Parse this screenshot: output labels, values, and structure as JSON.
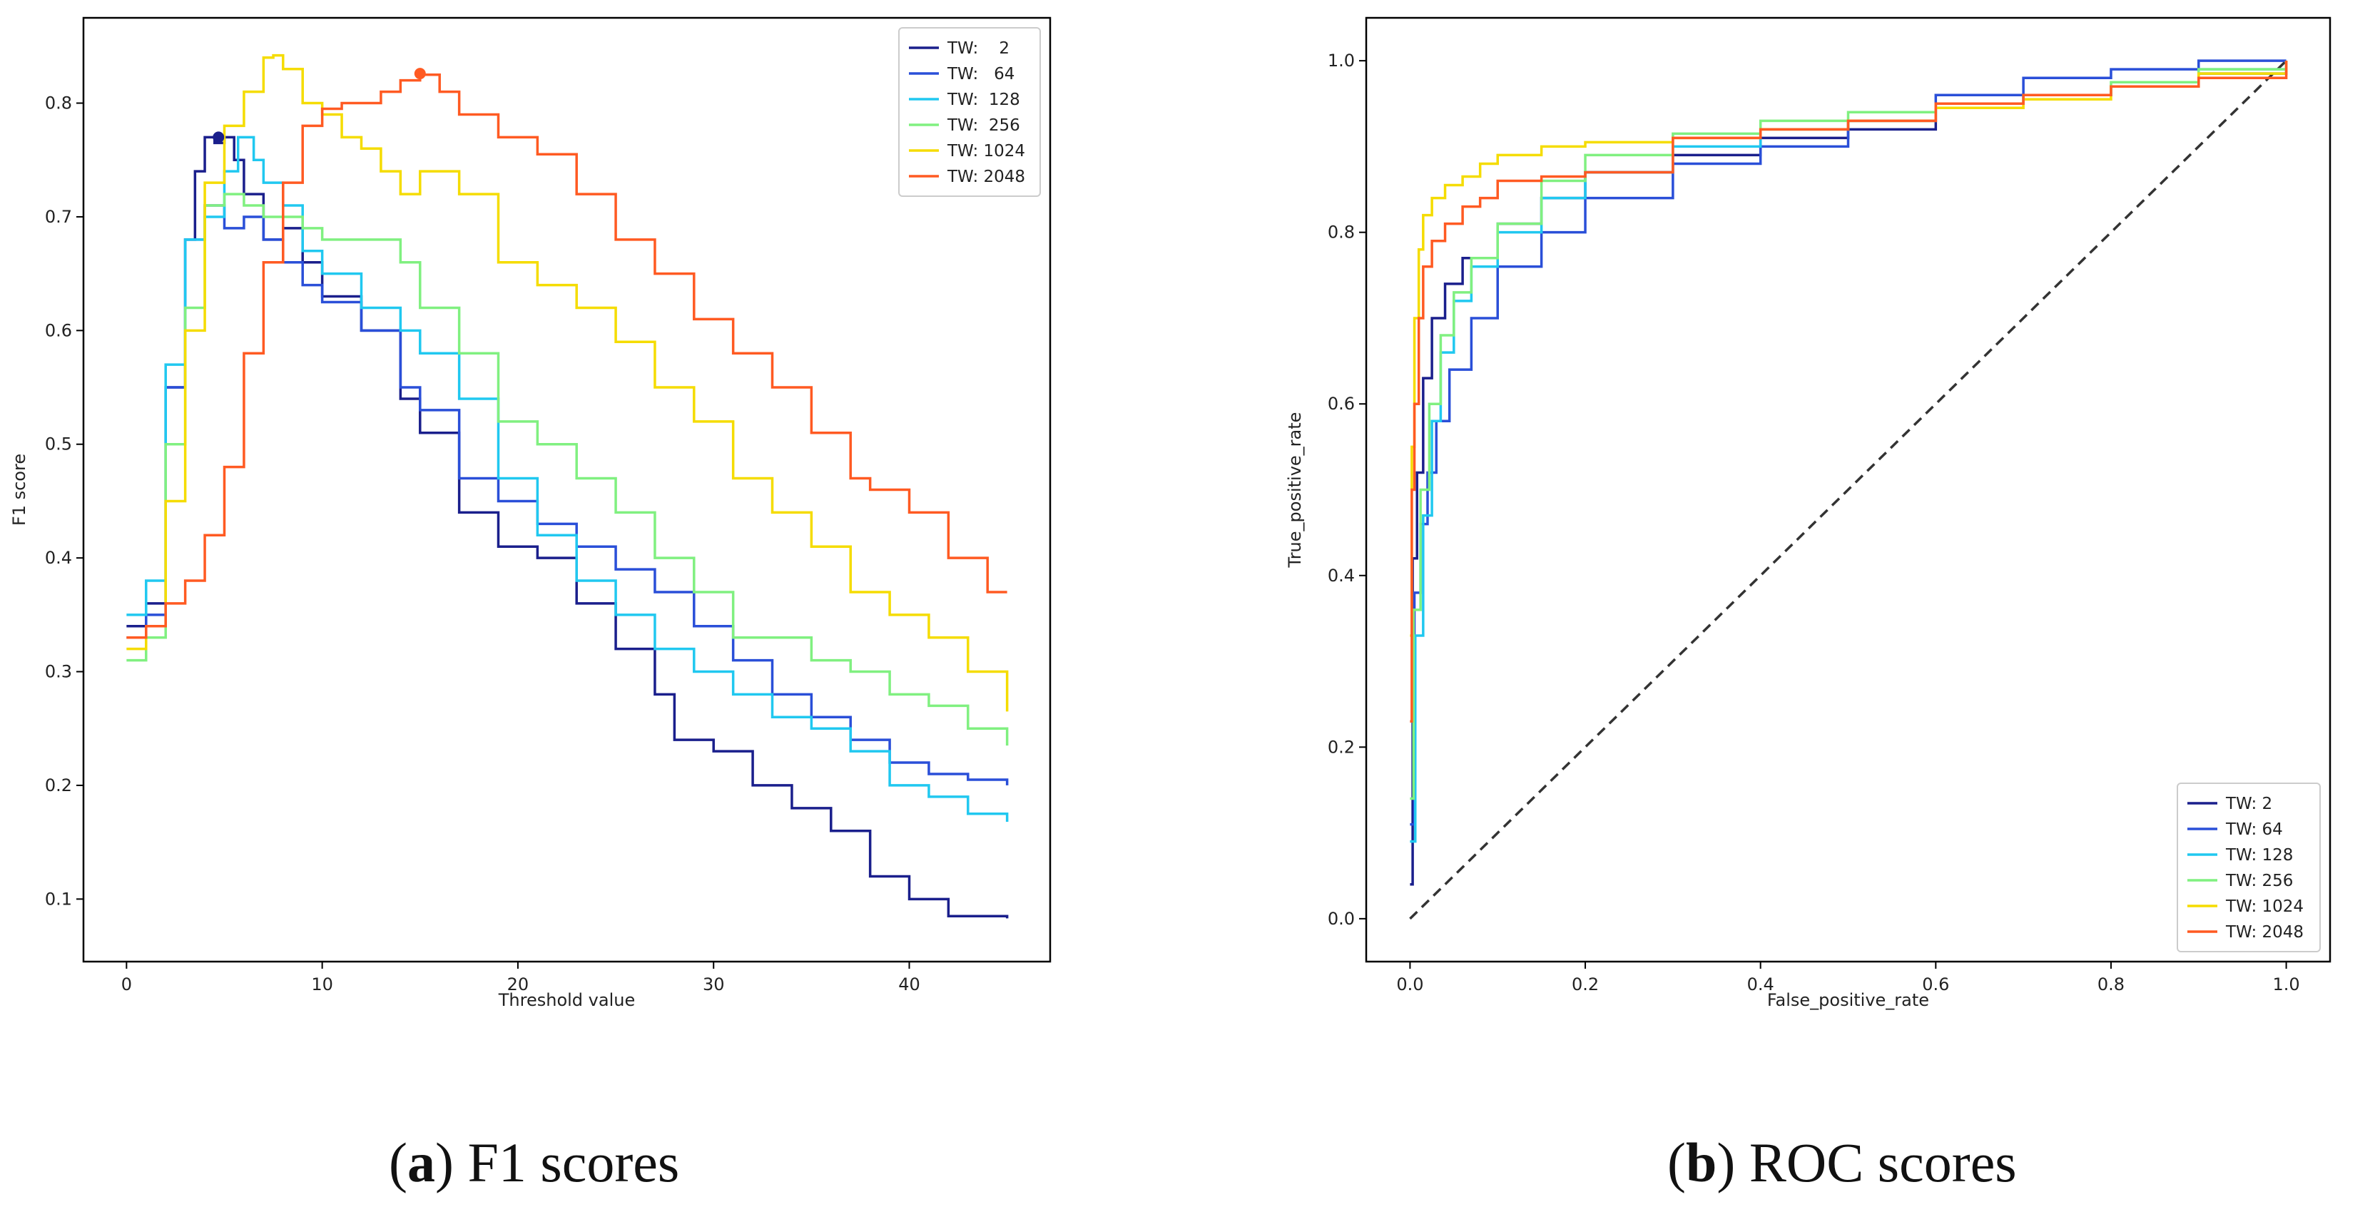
{
  "chart_data": [
    {
      "type": "line",
      "panel": "a",
      "caption_letter": "a",
      "caption_text": "F1 scores",
      "title": "",
      "xlabel": "Threshold value",
      "ylabel": "F1 score",
      "xlim": [
        -2.2,
        47.2
      ],
      "ylim": [
        0.045,
        0.875
      ],
      "xticks": [
        0,
        10,
        20,
        30,
        40
      ],
      "yticks": [
        0.1,
        0.2,
        0.3,
        0.4,
        0.5,
        0.6,
        0.7,
        0.8
      ],
      "grid": false,
      "legend_position": "top-right",
      "legend_labels": [
        "TW:    2",
        "TW:   64",
        "TW:  128",
        "TW:  256",
        "TW: 1024",
        "TW: 2048"
      ],
      "series": [
        {
          "name": "TW: 2",
          "color": "#1a1f8c",
          "step": true,
          "x": [
            0,
            1,
            2,
            3,
            3.5,
            4,
            4.5,
            5,
            5.5,
            6,
            7,
            8,
            9,
            10,
            12,
            14,
            15,
            17,
            19,
            21,
            23,
            25,
            27,
            28,
            30,
            32,
            34,
            36,
            38,
            40,
            42,
            45
          ],
          "y": [
            0.34,
            0.36,
            0.55,
            0.68,
            0.74,
            0.77,
            0.765,
            0.77,
            0.75,
            0.72,
            0.68,
            0.69,
            0.66,
            0.63,
            0.6,
            0.54,
            0.51,
            0.44,
            0.41,
            0.4,
            0.36,
            0.32,
            0.28,
            0.24,
            0.23,
            0.2,
            0.18,
            0.16,
            0.12,
            0.1,
            0.085,
            0.083
          ],
          "markers": [
            {
              "x": 4.7,
              "y": 0.77
            }
          ]
        },
        {
          "name": "TW: 64",
          "color": "#2a4fd8",
          "step": true,
          "x": [
            0,
            1,
            2,
            3,
            4,
            5,
            6,
            7,
            8,
            9,
            10,
            12,
            14,
            15,
            17,
            19,
            21,
            23,
            25,
            27,
            29,
            31,
            33,
            35,
            37,
            39,
            41,
            43,
            45
          ],
          "y": [
            0.33,
            0.35,
            0.55,
            0.68,
            0.71,
            0.69,
            0.7,
            0.68,
            0.66,
            0.64,
            0.625,
            0.6,
            0.55,
            0.53,
            0.47,
            0.45,
            0.43,
            0.41,
            0.39,
            0.37,
            0.34,
            0.31,
            0.28,
            0.26,
            0.24,
            0.22,
            0.21,
            0.205,
            0.2
          ]
        },
        {
          "name": "TW: 128",
          "color": "#20c8f0",
          "step": true,
          "x": [
            0,
            1,
            2,
            3,
            4,
            5,
            5.7,
            6.5,
            7,
            8,
            9,
            10,
            12,
            14,
            15,
            17,
            19,
            21,
            23,
            25,
            27,
            29,
            31,
            33,
            35,
            37,
            39,
            41,
            43,
            45
          ],
          "y": [
            0.35,
            0.38,
            0.57,
            0.68,
            0.7,
            0.74,
            0.77,
            0.75,
            0.73,
            0.71,
            0.67,
            0.65,
            0.62,
            0.6,
            0.58,
            0.54,
            0.47,
            0.42,
            0.38,
            0.35,
            0.32,
            0.3,
            0.28,
            0.26,
            0.25,
            0.23,
            0.2,
            0.19,
            0.175,
            0.168
          ]
        },
        {
          "name": "TW: 256",
          "color": "#80f080",
          "step": true,
          "x": [
            0,
            1,
            2,
            3,
            4,
            5,
            5.2,
            6,
            7,
            8,
            9,
            10,
            12,
            14,
            15,
            17,
            19,
            21,
            23,
            25,
            27,
            29,
            31,
            33,
            35,
            37,
            39,
            41,
            43,
            45
          ],
          "y": [
            0.31,
            0.33,
            0.5,
            0.62,
            0.71,
            0.72,
            0.72,
            0.71,
            0.7,
            0.7,
            0.69,
            0.68,
            0.68,
            0.66,
            0.62,
            0.58,
            0.52,
            0.5,
            0.47,
            0.44,
            0.4,
            0.37,
            0.33,
            0.33,
            0.31,
            0.3,
            0.28,
            0.27,
            0.25,
            0.235
          ]
        },
        {
          "name": "TW: 1024",
          "color": "#f5dc00",
          "step": true,
          "x": [
            0,
            1,
            2,
            3,
            4,
            5,
            6,
            7,
            7.5,
            8,
            9,
            10,
            11,
            12,
            13,
            14,
            15,
            17,
            19,
            21,
            23,
            25,
            27,
            29,
            31,
            33,
            35,
            37,
            39,
            41,
            43,
            45
          ],
          "y": [
            0.32,
            0.34,
            0.45,
            0.6,
            0.73,
            0.78,
            0.81,
            0.84,
            0.842,
            0.83,
            0.8,
            0.79,
            0.77,
            0.76,
            0.74,
            0.72,
            0.74,
            0.72,
            0.66,
            0.64,
            0.62,
            0.59,
            0.55,
            0.52,
            0.47,
            0.44,
            0.41,
            0.37,
            0.35,
            0.33,
            0.3,
            0.265
          ]
        },
        {
          "name": "TW: 2048",
          "color": "#ff5a22",
          "step": true,
          "x": [
            0,
            1,
            2,
            3,
            4,
            5,
            6,
            7,
            8,
            9,
            10,
            11,
            12,
            13,
            14,
            15,
            16,
            17,
            19,
            21,
            23,
            25,
            27,
            29,
            31,
            33,
            35,
            37,
            38,
            40,
            42,
            44,
            45
          ],
          "y": [
            0.33,
            0.34,
            0.36,
            0.38,
            0.42,
            0.48,
            0.58,
            0.66,
            0.73,
            0.78,
            0.795,
            0.8,
            0.8,
            0.81,
            0.82,
            0.825,
            0.81,
            0.79,
            0.77,
            0.755,
            0.72,
            0.68,
            0.65,
            0.61,
            0.58,
            0.55,
            0.51,
            0.47,
            0.46,
            0.44,
            0.4,
            0.37,
            0.37
          ],
          "markers": [
            {
              "x": 15,
              "y": 0.826
            }
          ]
        }
      ]
    },
    {
      "type": "line",
      "panel": "b",
      "caption_letter": "b",
      "caption_text": "ROC scores",
      "title": "",
      "xlabel": "False_positive_rate",
      "ylabel": "True_positive_rate",
      "xlim": [
        -0.05,
        1.05
      ],
      "ylim": [
        -0.05,
        1.05
      ],
      "xticks": [
        0.0,
        0.2,
        0.4,
        0.6,
        0.8,
        1.0
      ],
      "yticks": [
        0.0,
        0.2,
        0.4,
        0.6,
        0.8,
        1.0
      ],
      "grid": false,
      "legend_position": "bottom-right",
      "legend_labels": [
        "TW: 2",
        "TW: 64",
        "TW: 128",
        "TW: 256",
        "TW: 1024",
        "TW: 2048"
      ],
      "diagonal": {
        "x": [
          0,
          1
        ],
        "y": [
          0,
          1
        ],
        "style": "dashed",
        "color": "#333333"
      },
      "series": [
        {
          "name": "TW: 2",
          "color": "#1a1f8c",
          "step": true,
          "x": [
            0,
            0.003,
            0.008,
            0.015,
            0.025,
            0.04,
            0.06,
            0.1,
            0.15,
            0.2,
            0.3,
            0.4,
            0.5,
            0.6,
            0.7,
            0.8,
            0.9,
            1.0
          ],
          "y": [
            0.04,
            0.42,
            0.52,
            0.63,
            0.7,
            0.74,
            0.77,
            0.81,
            0.84,
            0.87,
            0.89,
            0.91,
            0.92,
            0.95,
            0.96,
            0.97,
            0.985,
            1.0
          ]
        },
        {
          "name": "TW: 64",
          "color": "#2a4fd8",
          "step": true,
          "x": [
            0,
            0.005,
            0.012,
            0.02,
            0.03,
            0.045,
            0.07,
            0.1,
            0.15,
            0.2,
            0.3,
            0.4,
            0.5,
            0.6,
            0.7,
            0.8,
            0.9,
            1.0
          ],
          "y": [
            0.11,
            0.38,
            0.46,
            0.52,
            0.58,
            0.64,
            0.7,
            0.76,
            0.8,
            0.84,
            0.88,
            0.9,
            0.93,
            0.96,
            0.98,
            0.99,
            1.0,
            1.0
          ]
        },
        {
          "name": "TW: 128",
          "color": "#20c8f0",
          "step": true,
          "x": [
            0,
            0.006,
            0.015,
            0.025,
            0.035,
            0.05,
            0.07,
            0.1,
            0.15,
            0.2,
            0.3,
            0.4,
            0.5,
            0.6,
            0.7,
            0.8,
            0.9,
            1.0
          ],
          "y": [
            0.09,
            0.33,
            0.47,
            0.58,
            0.66,
            0.72,
            0.76,
            0.8,
            0.84,
            0.87,
            0.9,
            0.92,
            0.93,
            0.95,
            0.96,
            0.97,
            0.99,
            1.0
          ]
        },
        {
          "name": "TW: 256",
          "color": "#80f080",
          "step": true,
          "x": [
            0,
            0.004,
            0.012,
            0.022,
            0.035,
            0.05,
            0.07,
            0.1,
            0.15,
            0.2,
            0.3,
            0.4,
            0.5,
            0.6,
            0.7,
            0.8,
            0.9,
            1.0
          ],
          "y": [
            0.14,
            0.36,
            0.5,
            0.6,
            0.68,
            0.73,
            0.77,
            0.81,
            0.86,
            0.89,
            0.915,
            0.93,
            0.94,
            0.95,
            0.96,
            0.975,
            0.99,
            1.0
          ]
        },
        {
          "name": "TW: 1024",
          "color": "#f5dc00",
          "step": true,
          "x": [
            0,
            0.002,
            0.005,
            0.01,
            0.015,
            0.025,
            0.04,
            0.06,
            0.08,
            0.1,
            0.15,
            0.2,
            0.3,
            0.4,
            0.5,
            0.6,
            0.7,
            0.8,
            0.9,
            1.0
          ],
          "y": [
            0.33,
            0.55,
            0.7,
            0.78,
            0.82,
            0.84,
            0.855,
            0.865,
            0.88,
            0.89,
            0.9,
            0.905,
            0.91,
            0.92,
            0.93,
            0.945,
            0.955,
            0.97,
            0.985,
            1.0
          ]
        },
        {
          "name": "TW: 2048",
          "color": "#ff5a22",
          "step": true,
          "x": [
            0,
            0.002,
            0.005,
            0.01,
            0.015,
            0.025,
            0.04,
            0.06,
            0.08,
            0.1,
            0.15,
            0.2,
            0.3,
            0.4,
            0.5,
            0.6,
            0.7,
            0.8,
            0.9,
            1.0
          ],
          "y": [
            0.23,
            0.5,
            0.6,
            0.7,
            0.76,
            0.79,
            0.81,
            0.83,
            0.84,
            0.86,
            0.865,
            0.87,
            0.91,
            0.92,
            0.93,
            0.95,
            0.96,
            0.97,
            0.98,
            1.0
          ]
        }
      ]
    }
  ]
}
